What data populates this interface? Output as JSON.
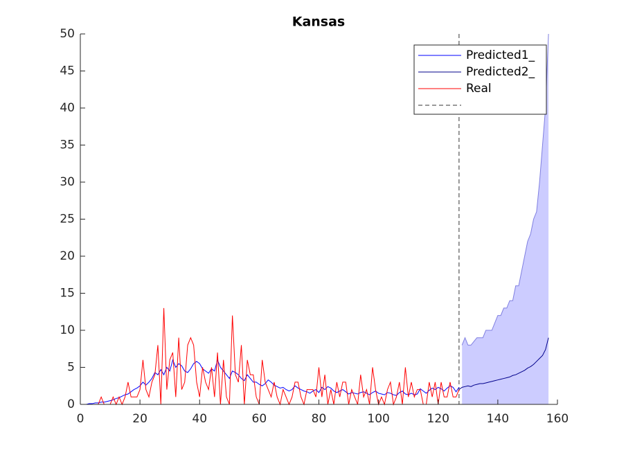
{
  "chart_data": {
    "type": "line",
    "title": "Kansas",
    "x": [
      1,
      2,
      3,
      4,
      5,
      6,
      7,
      8,
      9,
      10,
      11,
      12,
      13,
      14,
      15,
      16,
      17,
      18,
      19,
      20,
      21,
      22,
      23,
      24,
      25,
      26,
      27,
      28,
      29,
      30,
      31,
      32,
      33,
      34,
      35,
      36,
      37,
      38,
      39,
      40,
      41,
      42,
      43,
      44,
      45,
      46,
      47,
      48,
      49,
      50,
      51,
      52,
      53,
      54,
      55,
      56,
      57,
      58,
      59,
      60,
      61,
      62,
      63,
      64,
      65,
      66,
      67,
      68,
      69,
      70,
      71,
      72,
      73,
      74,
      75,
      76,
      77,
      78,
      79,
      80,
      81,
      82,
      83,
      84,
      85,
      86,
      87,
      88,
      89,
      90,
      91,
      92,
      93,
      94,
      95,
      96,
      97,
      98,
      99,
      100,
      101,
      102,
      103,
      104,
      105,
      106,
      107,
      108,
      109,
      110,
      111,
      112,
      113,
      114,
      115,
      116,
      117,
      118,
      119,
      120,
      121,
      122,
      123,
      124,
      125,
      126,
      127
    ],
    "series": [
      {
        "name": "Predicted1_",
        "color": "#0000ff",
        "values": [
          0,
          0,
          0.1,
          0.1,
          0.2,
          0.2,
          0.3,
          0.3,
          0.4,
          0.5,
          0.6,
          0.8,
          0.9,
          1.1,
          1.3,
          1.4,
          1.7,
          2,
          2.2,
          2.5,
          3,
          2.6,
          3,
          3.5,
          4.3,
          4,
          4.7,
          4,
          5,
          4.5,
          6,
          5,
          5.5,
          5.2,
          4.5,
          4.3,
          4.8,
          5.5,
          5.8,
          5.5,
          4.8,
          4.5,
          4.2,
          4.8,
          4.5,
          6,
          5,
          4.5,
          4,
          3.5,
          4.5,
          4.3,
          4,
          3.5,
          3.2,
          4,
          3.5,
          3,
          3,
          2.7,
          2.5,
          2.8,
          3.3,
          3,
          2.6,
          2.4,
          2.2,
          2.3,
          2,
          1.8,
          2,
          2.5,
          2.2,
          2,
          1.8,
          1.7,
          1.5,
          1.8,
          2,
          1.6,
          2.3,
          2,
          2.4,
          2.2,
          1.8,
          1.6,
          1.8,
          2,
          1.7,
          1.4,
          1.6,
          1.5,
          1.4,
          1.6,
          1.7,
          1.5,
          1.3,
          1.6,
          1.8,
          1.5,
          1.4,
          1.3,
          1.6,
          1.5,
          1.3,
          1.2,
          1.6,
          1.8,
          1.4,
          1.3,
          1.5,
          1.3,
          1.4,
          2.1,
          1.8,
          1.5,
          1.9,
          2.2,
          2,
          2.3,
          2.1,
          1.8,
          2.2,
          2.5,
          2.3,
          1.7,
          2.3
        ]
      },
      {
        "name": "Predicted2_",
        "color": "#00008b",
        "x": [
          127,
          128,
          129,
          130,
          131,
          132,
          133,
          134,
          135,
          136,
          137,
          138,
          139,
          140,
          141,
          142,
          143,
          144,
          145,
          146,
          147,
          148,
          149,
          150,
          151,
          152,
          153,
          154,
          155,
          156,
          157
        ],
        "values": [
          2,
          2.3,
          2.4,
          2.5,
          2.4,
          2.6,
          2.7,
          2.8,
          2.8,
          2.9,
          3,
          3.1,
          3.2,
          3.3,
          3.4,
          3.5,
          3.6,
          3.7,
          3.9,
          4,
          4.2,
          4.4,
          4.6,
          4.9,
          5.1,
          5.4,
          5.8,
          6.2,
          6.6,
          7.4,
          9
        ]
      },
      {
        "name": "Real",
        "color": "#ff0000",
        "values": [
          0,
          0,
          0,
          0,
          0,
          0,
          1,
          0,
          0,
          0,
          1,
          0,
          1,
          0,
          1,
          3,
          1,
          1,
          1,
          2,
          6,
          2,
          1,
          3,
          4,
          8,
          0,
          13,
          2,
          6,
          7,
          1,
          9,
          2,
          3,
          8,
          9,
          8,
          3,
          1,
          5,
          3,
          2,
          5,
          1,
          7,
          0,
          6,
          1,
          0,
          12,
          4,
          3,
          8,
          0,
          6,
          4,
          4,
          1,
          0,
          6,
          3,
          2,
          1,
          3,
          1,
          0,
          2,
          1,
          0,
          1,
          3,
          3,
          1,
          0,
          2,
          2,
          2,
          1,
          5,
          1,
          4,
          0,
          2,
          0,
          3,
          1,
          3,
          3,
          0,
          2,
          1,
          0,
          4,
          1,
          2,
          0,
          5,
          2,
          0,
          1,
          0,
          2,
          3,
          0,
          1,
          3,
          0,
          5,
          1,
          3,
          1,
          2,
          2,
          0,
          0,
          3,
          1,
          3,
          0,
          3,
          1,
          1,
          3,
          1,
          1,
          2
        ]
      }
    ],
    "band": {
      "x": [
        128,
        129,
        130,
        131,
        132,
        133,
        134,
        135,
        136,
        137,
        138,
        139,
        140,
        141,
        142,
        143,
        144,
        145,
        146,
        147,
        148,
        149,
        150,
        151,
        152,
        153,
        154,
        155,
        156,
        157
      ],
      "upper": [
        8,
        9,
        8,
        8,
        8.5,
        9,
        9,
        9,
        10,
        10,
        10,
        11,
        12,
        12,
        13,
        13,
        14,
        14,
        16,
        16,
        18,
        20,
        22,
        23,
        25,
        26,
        30,
        35,
        40,
        50
      ],
      "lower": [
        0,
        0,
        0,
        0,
        0,
        0,
        0,
        0,
        0,
        0,
        0,
        0,
        0,
        0,
        0,
        0,
        0,
        0,
        0,
        0,
        0,
        0,
        0,
        0,
        0,
        0,
        0,
        0,
        0,
        0
      ],
      "color": "#ccccff",
      "edge": "#7f7fe0"
    },
    "vline": {
      "x": 127,
      "color": "#333333"
    },
    "xlim": [
      0,
      160
    ],
    "xticks": [
      0,
      20,
      40,
      60,
      80,
      100,
      120,
      140,
      160
    ],
    "ylim": [
      0,
      50
    ],
    "yticks": [
      0,
      5,
      10,
      15,
      20,
      25,
      30,
      35,
      40,
      45,
      50
    ],
    "legend": "northeast"
  }
}
